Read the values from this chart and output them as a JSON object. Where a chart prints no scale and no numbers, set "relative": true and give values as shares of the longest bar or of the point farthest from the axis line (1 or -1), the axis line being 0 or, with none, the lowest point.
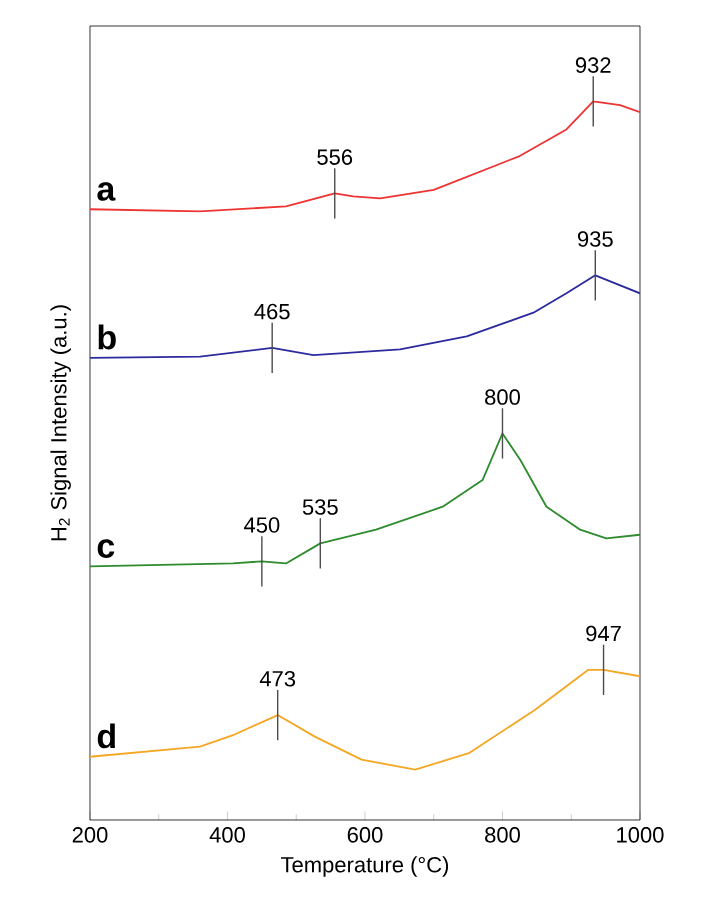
{
  "chart_data": {
    "type": "line",
    "relative": true,
    "xlabel": "Temperature (°C)",
    "ylabel": "H$_{2}$ Signal Intensity (a.u.)",
    "xlim": [
      200,
      1000
    ],
    "xticks": [
      200,
      400,
      600,
      800,
      1000
    ],
    "legend": false,
    "grid": false,
    "marker": "none",
    "line_style": "solid",
    "series": [
      {
        "name": "a",
        "color": "#ee3333",
        "x": [
          200,
          360,
          485,
          556,
          583,
          622,
          700,
          825,
          893,
          932,
          971,
          1000
        ],
        "values": [
          0.85,
          0.847,
          0.854,
          0.872,
          0.868,
          0.865,
          0.877,
          0.924,
          0.961,
          1.0,
          0.995,
          0.985
        ]
      },
      {
        "name": "b",
        "color": "#2b2b9e",
        "x": [
          200,
          360,
          465,
          525,
          651,
          748,
          845,
          893,
          935,
          1000
        ],
        "values": [
          0.643,
          0.645,
          0.657,
          0.647,
          0.655,
          0.673,
          0.706,
          0.733,
          0.758,
          0.733
        ]
      },
      {
        "name": "c",
        "color": "#2e8b2e",
        "x": [
          200,
          408,
          450,
          485,
          535,
          616,
          713,
          771,
          800,
          826,
          864,
          913,
          951,
          1000
        ],
        "values": [
          0.353,
          0.357,
          0.36,
          0.357,
          0.385,
          0.404,
          0.436,
          0.473,
          0.538,
          0.501,
          0.436,
          0.404,
          0.392,
          0.397
        ]
      },
      {
        "name": "d",
        "color": "#f5a623",
        "x": [
          200,
          360,
          408,
          473,
          527,
          595,
          673,
          751,
          847,
          925,
          947,
          1000
        ],
        "values": [
          0.088,
          0.102,
          0.118,
          0.146,
          0.116,
          0.084,
          0.07,
          0.093,
          0.153,
          0.209,
          0.209,
          0.2
        ]
      }
    ],
    "annotations": [
      {
        "text": "932",
        "x": 932,
        "y": 1.0
      },
      {
        "text": "556",
        "x": 556,
        "y": 0.872
      },
      {
        "text": "935",
        "x": 935,
        "y": 0.758
      },
      {
        "text": "465",
        "x": 465,
        "y": 0.657
      },
      {
        "text": "800",
        "x": 800,
        "y": 0.538
      },
      {
        "text": "450",
        "x": 450,
        "y": 0.36
      },
      {
        "text": "535",
        "x": 535,
        "y": 0.385
      },
      {
        "text": "473",
        "x": 473,
        "y": 0.146
      },
      {
        "text": "947",
        "x": 947,
        "y": 0.209
      }
    ]
  }
}
